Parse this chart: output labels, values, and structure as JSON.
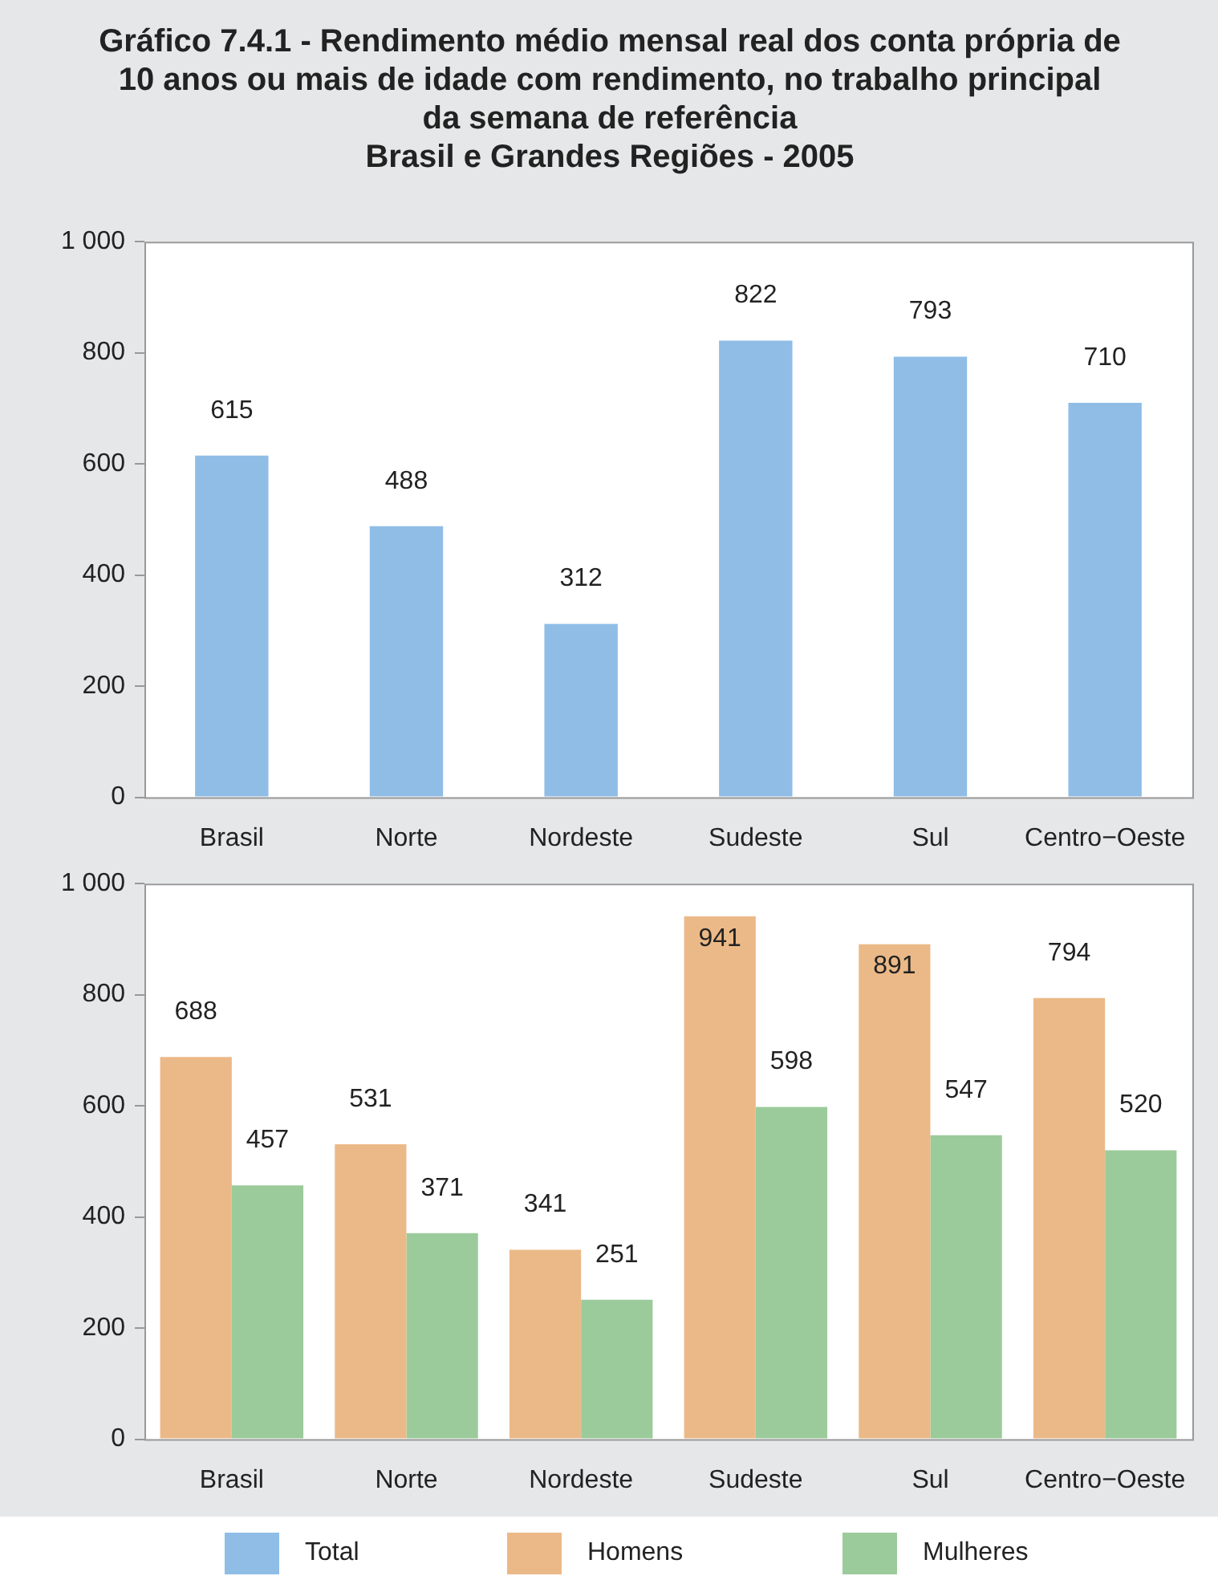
{
  "chart_data": [
    {
      "type": "bar",
      "title": "Gráfico 7.4.1 - Rendimento médio mensal real dos conta própria de 10 anos ou mais de idade com rendimento, no trabalho principal da semana de referência\nBrasil e Grandes Regiões - 2005",
      "categories": [
        "Brasil",
        "Norte",
        "Nordeste",
        "Sudeste",
        "Sul",
        "Centro−Oeste"
      ],
      "series": [
        {
          "name": "Total",
          "color": "#8fbde6",
          "values": [
            615,
            488,
            312,
            822,
            793,
            710
          ]
        }
      ],
      "ylim": [
        0,
        1000
      ],
      "yticks": [
        0,
        200,
        400,
        600,
        800,
        {
          "value": 1000,
          "label": "1 000"
        }
      ],
      "grid": false,
      "data_labels": true,
      "legend": "bottom"
    },
    {
      "type": "bar",
      "categories": [
        "Brasil",
        "Norte",
        "Nordeste",
        "Sudeste",
        "Sul",
        "Centro−Oeste"
      ],
      "series": [
        {
          "name": "Homens",
          "color": "#ebb987",
          "values": [
            688,
            531,
            341,
            941,
            891,
            794
          ]
        },
        {
          "name": "Mulheres",
          "color": "#9bcb9b",
          "values": [
            457,
            371,
            251,
            598,
            547,
            520
          ]
        }
      ],
      "ylim": [
        0,
        1000
      ],
      "yticks": [
        0,
        200,
        400,
        600,
        800,
        {
          "value": 1000,
          "label": "1 000"
        }
      ],
      "grid": false,
      "data_labels": true,
      "legend": "bottom"
    }
  ]
}
